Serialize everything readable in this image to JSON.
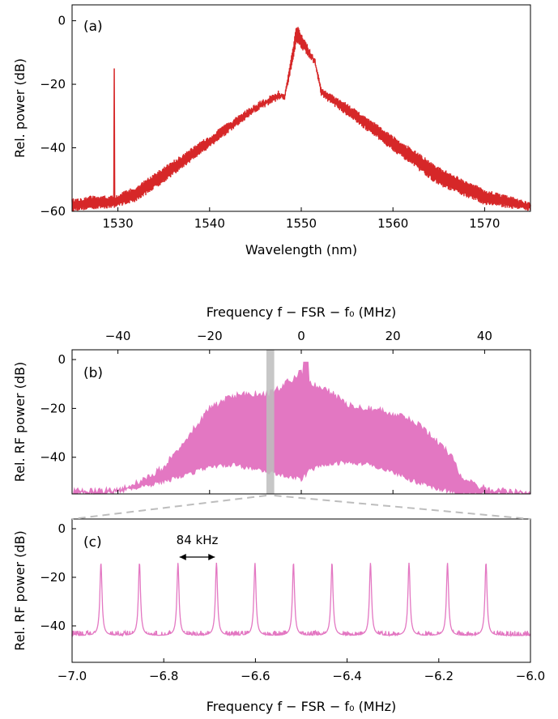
{
  "colors": {
    "panel_a_trace": "#d62728",
    "panel_bc_trace": "#e377c2",
    "highlight_band": "#bdbdbd",
    "zoom_guides": "#bdbdbd",
    "axes": "#000000"
  },
  "chart_data": [
    {
      "panel": "(a)",
      "type": "line",
      "xlabel": "Wavelength (nm)",
      "ylabel": "Rel. power (dB)",
      "xlim": [
        1525,
        1575
      ],
      "ylim": [
        -60,
        5
      ],
      "xticks": [
        1530,
        1540,
        1550,
        1560,
        1570
      ],
      "yticks": [
        -60,
        -40,
        -20,
        0
      ],
      "xtick_labels": [
        "1530",
        "1540",
        "1550",
        "1560",
        "1570"
      ],
      "ytick_labels": [
        "−60",
        "−40",
        "−20",
        "0"
      ],
      "series": [
        {
          "color": "#d62728",
          "envelope_x": [
            1525,
            1527,
            1529.5,
            1532,
            1535,
            1540,
            1545,
            1547.5,
            1548.2,
            1549.5,
            1551.5,
            1552.2,
            1555,
            1560,
            1565,
            1570,
            1575
          ],
          "envelope_upper": [
            -56,
            -55,
            -55,
            -52,
            -46,
            -36,
            -26,
            -22,
            -23,
            -1,
            -12,
            -21,
            -26,
            -36,
            -46,
            -53,
            -57
          ],
          "envelope_lower": [
            -60,
            -59.5,
            -59,
            -57,
            -51,
            -40,
            -29,
            -25,
            -25,
            -7,
            -14,
            -24,
            -30,
            -41,
            -52,
            -58,
            -60
          ],
          "spike": {
            "x": 1529.6,
            "y": -15
          }
        }
      ]
    },
    {
      "panel": "(b)",
      "type": "area",
      "xlabel": "Frequency f − FSR − f₀ (MHz)",
      "ylabel": "Rel. RF power (dB)",
      "xlim": [
        -50,
        50
      ],
      "ylim": [
        -55,
        4
      ],
      "xticks": [
        -40,
        -20,
        0,
        20,
        40
      ],
      "yticks": [
        -40,
        -20,
        0
      ],
      "xtick_labels": [
        "−40",
        "−20",
        "0",
        "20",
        "40"
      ],
      "ytick_labels": [
        "−40",
        "−20",
        "0"
      ],
      "highlight_band": [
        -7.0,
        -6.0
      ],
      "series": [
        {
          "color": "#e377c2",
          "x": [
            -50,
            -45,
            -40,
            -35,
            -30,
            -25,
            -20,
            -15,
            -10,
            -7,
            -5,
            -2,
            0,
            2,
            5,
            10,
            15,
            20,
            25,
            30,
            33,
            35,
            40,
            45,
            50
          ],
          "upper": [
            -54,
            -54,
            -53,
            -50,
            -44,
            -32,
            -20,
            -15,
            -14,
            -14,
            -12,
            -8,
            -5,
            -10,
            -12,
            -18,
            -20,
            -22,
            -26,
            -34,
            -40,
            -48,
            -53,
            -54,
            -55
          ],
          "lower": [
            -55,
            -55,
            -54,
            -52,
            -50,
            -47,
            -44,
            -43,
            -45,
            -46,
            -47,
            -48,
            -49,
            -45,
            -43,
            -42,
            -43,
            -46,
            -50,
            -53,
            -54,
            -55,
            -55,
            -55,
            -55
          ],
          "peak": {
            "x": 1,
            "y": -1
          }
        }
      ]
    },
    {
      "panel": "(c)",
      "type": "line",
      "xlabel": "Frequency f − FSR − f₀ (MHz)",
      "ylabel": "Rel. RF power (dB)",
      "xlim": [
        -7.0,
        -6.0
      ],
      "ylim": [
        -55,
        4
      ],
      "xticks": [
        -7.0,
        -6.8,
        -6.6,
        -6.4,
        -6.2,
        -6.0
      ],
      "yticks": [
        -40,
        -20,
        0
      ],
      "xtick_labels": [
        "−7.0",
        "−6.8",
        "−6.6",
        "−6.4",
        "−6.2",
        "−6.0"
      ],
      "ytick_labels": [
        "−40",
        "−20",
        "0"
      ],
      "annotation": "84 kHz",
      "series": [
        {
          "color": "#e377c2",
          "peak_x": [
            -6.937,
            -6.853,
            -6.769,
            -6.685,
            -6.601,
            -6.517,
            -6.433,
            -6.349,
            -6.265,
            -6.181,
            -6.097
          ],
          "peak_y": -14,
          "floor_y": -44
        }
      ]
    }
  ]
}
